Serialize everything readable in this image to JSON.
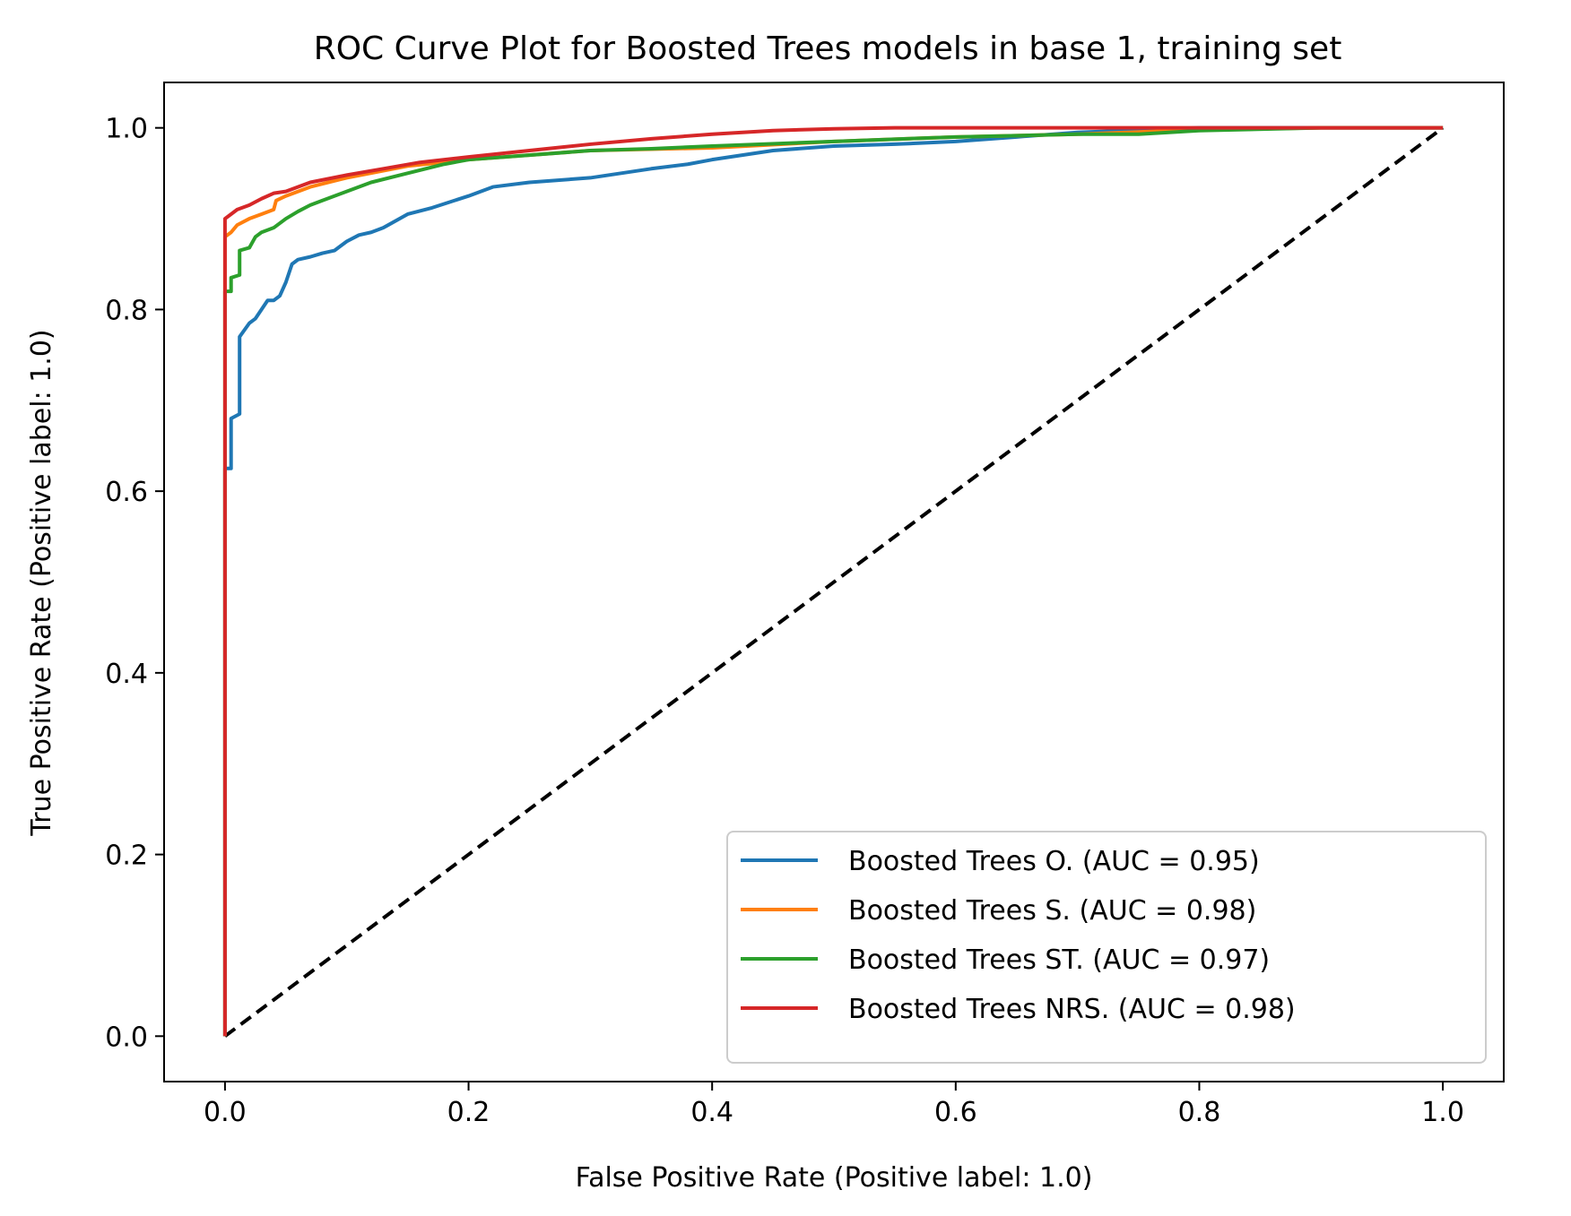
{
  "chart_data": {
    "type": "line",
    "title": "ROC Curve Plot for Boosted Trees models in base 1, training set",
    "xlabel": "False Positive Rate (Positive label: 1.0)",
    "ylabel": "True Positive Rate (Positive label: 1.0)",
    "xlim": [
      -0.05,
      1.05
    ],
    "ylim": [
      -0.05,
      1.05
    ],
    "xticks": [
      "0.0",
      "0.2",
      "0.4",
      "0.6",
      "0.8",
      "1.0"
    ],
    "yticks": [
      "0.0",
      "0.2",
      "0.4",
      "0.6",
      "0.8",
      "1.0"
    ],
    "grid": false,
    "legend": "lower-right",
    "series": [
      {
        "name": "Boosted Trees O. (AUC = 0.95)",
        "color": "#1f77b4",
        "x": [
          0,
          0,
          0.005,
          0.005,
          0.012,
          0.012,
          0.02,
          0.025,
          0.03,
          0.035,
          0.04,
          0.045,
          0.05,
          0.055,
          0.06,
          0.07,
          0.08,
          0.09,
          0.1,
          0.11,
          0.12,
          0.13,
          0.15,
          0.17,
          0.2,
          0.22,
          0.25,
          0.3,
          0.35,
          0.38,
          0.4,
          0.45,
          0.5,
          0.55,
          0.6,
          0.65,
          0.7,
          0.8,
          0.9,
          1.0
        ],
        "y": [
          0,
          0.625,
          0.625,
          0.68,
          0.685,
          0.77,
          0.785,
          0.79,
          0.8,
          0.81,
          0.81,
          0.815,
          0.83,
          0.85,
          0.855,
          0.858,
          0.862,
          0.865,
          0.875,
          0.882,
          0.885,
          0.89,
          0.905,
          0.912,
          0.925,
          0.935,
          0.94,
          0.945,
          0.955,
          0.96,
          0.965,
          0.975,
          0.98,
          0.982,
          0.985,
          0.99,
          0.995,
          1.0,
          1.0,
          1.0
        ]
      },
      {
        "name": "Boosted Trees S. (AUC = 0.98)",
        "color": "#ff7f0e",
        "x": [
          0,
          0,
          0.005,
          0.01,
          0.02,
          0.03,
          0.04,
          0.042,
          0.05,
          0.07,
          0.1,
          0.15,
          0.2,
          0.3,
          0.4,
          0.5,
          0.6,
          0.7,
          0.8,
          0.9,
          1.0
        ],
        "y": [
          0,
          0.88,
          0.885,
          0.893,
          0.9,
          0.905,
          0.91,
          0.92,
          0.925,
          0.935,
          0.945,
          0.958,
          0.965,
          0.975,
          0.978,
          0.985,
          0.99,
          0.993,
          0.998,
          1.0,
          1.0
        ]
      },
      {
        "name": "Boosted Trees ST. (AUC = 0.97)",
        "color": "#2ca02c",
        "x": [
          0,
          0,
          0.005,
          0.005,
          0.012,
          0.012,
          0.02,
          0.025,
          0.03,
          0.04,
          0.05,
          0.06,
          0.07,
          0.08,
          0.1,
          0.12,
          0.15,
          0.18,
          0.2,
          0.25,
          0.3,
          0.35,
          0.4,
          0.5,
          0.6,
          0.7,
          0.75,
          0.8,
          0.9,
          1.0
        ],
        "y": [
          0,
          0.82,
          0.82,
          0.835,
          0.838,
          0.865,
          0.868,
          0.88,
          0.885,
          0.89,
          0.9,
          0.908,
          0.915,
          0.92,
          0.93,
          0.94,
          0.95,
          0.96,
          0.965,
          0.97,
          0.975,
          0.977,
          0.98,
          0.985,
          0.99,
          0.993,
          0.993,
          0.997,
          1.0,
          1.0
        ]
      },
      {
        "name": "Boosted Trees NRS. (AUC = 0.98)",
        "color": "#d62728",
        "x": [
          0,
          0,
          0.005,
          0.01,
          0.02,
          0.03,
          0.04,
          0.05,
          0.07,
          0.1,
          0.13,
          0.16,
          0.2,
          0.25,
          0.3,
          0.35,
          0.4,
          0.45,
          0.5,
          0.55,
          1.0
        ],
        "y": [
          0,
          0.9,
          0.905,
          0.91,
          0.915,
          0.922,
          0.928,
          0.93,
          0.94,
          0.948,
          0.955,
          0.962,
          0.968,
          0.975,
          0.982,
          0.988,
          0.993,
          0.997,
          0.999,
          1.0,
          1.0
        ]
      }
    ],
    "reference_line": {
      "x": [
        0,
        1
      ],
      "y": [
        0,
        1
      ],
      "color": "#000000",
      "style": "dashed"
    }
  }
}
